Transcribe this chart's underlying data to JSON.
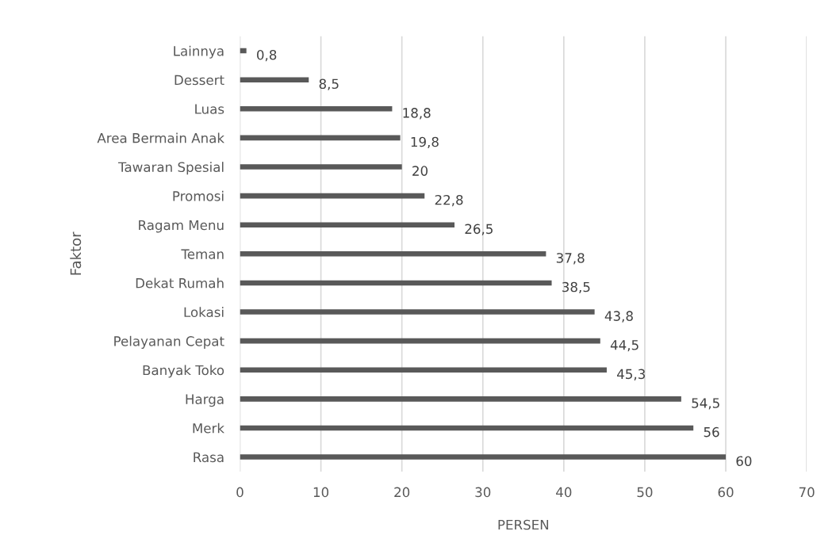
{
  "chart_data": {
    "type": "bar",
    "orientation": "horizontal",
    "xlabel": "PERSEN",
    "ylabel": "Faktor",
    "categories": [
      "Lainnya",
      "Dessert",
      "Luas",
      "Area Bermain Anak",
      "Tawaran Spesial",
      "Promosi",
      "Ragam Menu",
      "Teman",
      "Dekat Rumah",
      "Lokasi",
      "Pelayanan Cepat",
      "Banyak Toko",
      "Harga",
      "Merk",
      "Rasa"
    ],
    "values": [
      0.8,
      8.5,
      18.8,
      19.8,
      20,
      22.8,
      26.5,
      37.8,
      38.5,
      43.8,
      44.5,
      45.3,
      54.5,
      56,
      60
    ],
    "value_labels": [
      "0,8",
      "8,5",
      "18,8",
      "19,8",
      "20",
      "22,8",
      "26,5",
      "37,8",
      "38,5",
      "43,8",
      "44,5",
      "45,3",
      "54,5",
      "56",
      "60"
    ],
    "color": "#595959",
    "xlim": [
      0,
      70
    ],
    "xticks": [
      0,
      10,
      20,
      30,
      40,
      50,
      60,
      70
    ],
    "grid": "x"
  }
}
